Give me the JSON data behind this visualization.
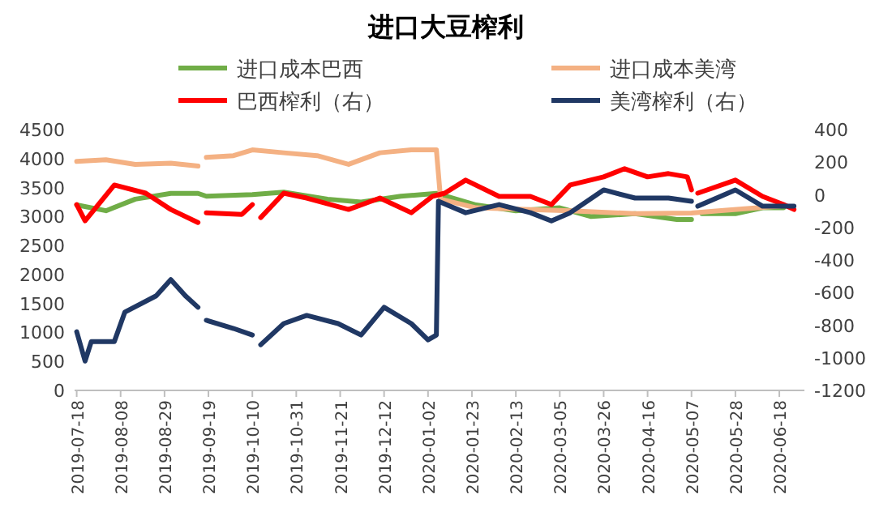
{
  "chart_data": {
    "type": "line",
    "title": "进口大豆榨利",
    "legend": "top",
    "grid": false,
    "line_style": "solid",
    "xlim": [
      "2019-07-17",
      "2020-06-30"
    ],
    "xticks": [
      "2019-07-18",
      "2019-08-08",
      "2019-08-29",
      "2019-09-19",
      "2019-10-10",
      "2019-10-31",
      "2019-11-21",
      "2019-12-12",
      "2020-01-02",
      "2020-01-23",
      "2020-02-13",
      "2020-03-05",
      "2020-03-26",
      "2020-04-16",
      "2020-05-07",
      "2020-05-28",
      "2020-06-18"
    ],
    "ylim": [
      0,
      4500
    ],
    "yticks": [
      0,
      500,
      1000,
      1500,
      2000,
      2500,
      3000,
      3500,
      4000,
      4500
    ],
    "y2lim": [
      -1200,
      400
    ],
    "y2ticks": [
      -1200,
      -1000,
      -800,
      -600,
      -400,
      -200,
      0,
      200,
      400
    ],
    "series": [
      {
        "name": "进口成本巴西",
        "color": "#70ad47",
        "x": [
          "2019-07-18",
          "2019-08-01",
          "2019-08-15",
          "2019-09-01",
          "2019-09-14",
          "2019-09-18",
          "2019-10-10",
          "2019-10-25",
          "2019-11-15",
          "2019-12-01",
          "2019-12-20",
          "2020-01-06",
          "2020-01-25",
          "2020-02-13",
          "2020-03-05",
          "2020-03-20",
          "2020-04-10",
          "2020-04-30",
          "2020-05-07",
          "2020-05-09",
          "2020-05-12",
          "2020-05-28",
          "2020-06-10",
          "2020-06-20"
        ],
        "values": [
          3200,
          3100,
          3300,
          3400,
          3400,
          3350,
          3380,
          3420,
          3300,
          3250,
          3350,
          3400,
          3200,
          3100,
          3150,
          3000,
          3050,
          2950,
          2950,
          null,
          3050,
          3050,
          3150,
          3150
        ]
      },
      {
        "name": "进口成本美湾",
        "color": "#f4b183",
        "x": [
          "2019-07-18",
          "2019-08-01",
          "2019-08-15",
          "2019-09-01",
          "2019-09-14",
          "2019-09-16",
          "2019-09-18",
          "2019-10-01",
          "2019-10-10",
          "2019-10-25",
          "2019-11-10",
          "2019-11-25",
          "2019-12-10",
          "2019-12-25",
          "2020-01-06",
          "2020-01-08",
          "2020-01-25",
          "2020-02-20",
          "2020-03-10",
          "2020-04-10",
          "2020-05-07",
          "2020-05-20",
          "2020-06-18"
        ],
        "values": [
          3950,
          3980,
          3900,
          3920,
          3870,
          null,
          4020,
          4050,
          4150,
          4100,
          4050,
          3900,
          4100,
          4150,
          4150,
          3300,
          3150,
          3120,
          3100,
          3050,
          3060,
          3100,
          3180
        ]
      },
      {
        "name": "巴西榨利（右）",
        "color": "#ff0000",
        "axis": "y2",
        "x": [
          "2019-07-18",
          "2019-07-22",
          "2019-08-05",
          "2019-08-20",
          "2019-09-01",
          "2019-09-14",
          "2019-09-16",
          "2019-09-18",
          "2019-10-05",
          "2019-10-10",
          "2019-10-12",
          "2019-10-14",
          "2019-10-25",
          "2019-11-05",
          "2019-11-25",
          "2019-12-10",
          "2019-12-25",
          "2020-01-04",
          "2020-01-10",
          "2020-01-20",
          "2020-02-05",
          "2020-02-20",
          "2020-03-01",
          "2020-03-10",
          "2020-03-26",
          "2020-04-05",
          "2020-04-16",
          "2020-04-26",
          "2020-05-05",
          "2020-05-07",
          "2020-05-08",
          "2020-05-10",
          "2020-05-28",
          "2020-06-10",
          "2020-06-20",
          "2020-06-25"
        ],
        "values": [
          -60,
          -160,
          60,
          10,
          -90,
          -170,
          null,
          -110,
          -120,
          -60,
          null,
          -140,
          10,
          -20,
          -90,
          -20,
          -110,
          -10,
          10,
          90,
          -10,
          -10,
          -60,
          60,
          110,
          160,
          110,
          130,
          110,
          30,
          null,
          10,
          90,
          -10,
          -60,
          -90
        ]
      },
      {
        "name": "美湾榨利（右）",
        "color": "#203864",
        "axis": "y2",
        "x": [
          "2019-07-18",
          "2019-07-22",
          "2019-07-25",
          "2019-08-05",
          "2019-08-10",
          "2019-08-25",
          "2019-09-01",
          "2019-09-08",
          "2019-09-14",
          "2019-09-16",
          "2019-09-18",
          "2019-10-01",
          "2019-10-10",
          "2019-10-12",
          "2019-10-14",
          "2019-10-25",
          "2019-11-05",
          "2019-11-20",
          "2019-12-01",
          "2019-12-12",
          "2019-12-25",
          "2020-01-02",
          "2020-01-06",
          "2020-01-07",
          "2020-01-20",
          "2020-02-05",
          "2020-02-20",
          "2020-03-01",
          "2020-03-10",
          "2020-03-26",
          "2020-04-10",
          "2020-04-26",
          "2020-05-07",
          "2020-05-08",
          "2020-05-10",
          "2020-05-28",
          "2020-06-10",
          "2020-06-25"
        ],
        "values": [
          -840,
          -1020,
          -900,
          -900,
          -720,
          -620,
          -520,
          -620,
          -690,
          null,
          -770,
          -820,
          -860,
          null,
          -920,
          -790,
          -740,
          -790,
          -860,
          -690,
          -790,
          -890,
          -860,
          -40,
          -110,
          -60,
          -110,
          -160,
          -110,
          30,
          -20,
          -20,
          -40,
          null,
          -70,
          30,
          -70,
          -70
        ]
      }
    ]
  }
}
